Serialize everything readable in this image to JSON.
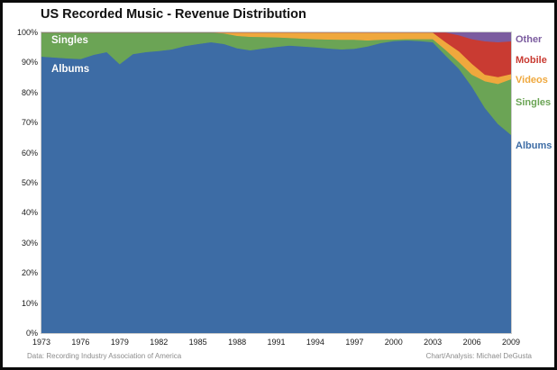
{
  "chart_data": {
    "type": "area",
    "stacked": true,
    "stack_total": 100,
    "title": "US Recorded Music - Revenue Distribution",
    "xlabel": "",
    "ylabel": "",
    "ylim": [
      0,
      100
    ],
    "grid": false,
    "legend_position": "right-outside",
    "x": [
      1973,
      1974,
      1975,
      1976,
      1977,
      1978,
      1979,
      1980,
      1981,
      1982,
      1983,
      1984,
      1985,
      1986,
      1987,
      1988,
      1989,
      1990,
      1991,
      1992,
      1993,
      1994,
      1995,
      1996,
      1997,
      1998,
      1999,
      2000,
      2001,
      2002,
      2003,
      2004,
      2005,
      2006,
      2007,
      2008,
      2009
    ],
    "x_tick_labels": [
      "1973",
      "1976",
      "1979",
      "1982",
      "1985",
      "1988",
      "1991",
      "1994",
      "1997",
      "2000",
      "2003",
      "2006",
      "2009"
    ],
    "y_tick_labels": [
      "0%",
      "10%",
      "20%",
      "30%",
      "40%",
      "50%",
      "60%",
      "70%",
      "80%",
      "90%",
      "100%"
    ],
    "series": [
      {
        "name": "Albums",
        "color": "#3D6CA5",
        "values": [
          92.0,
          91.7,
          91.4,
          91.2,
          92.6,
          93.5,
          89.5,
          92.8,
          93.5,
          93.9,
          94.4,
          95.5,
          96.2,
          96.8,
          96.2,
          94.8,
          94.1,
          94.7,
          95.2,
          95.7,
          95.4,
          95.1,
          94.7,
          94.4,
          94.6,
          95.4,
          96.5,
          97.2,
          97.4,
          97.2,
          96.8,
          92.3,
          88.0,
          82.0,
          74.9,
          69.6,
          66.0
        ]
      },
      {
        "name": "Singles",
        "color": "#6BA455",
        "values": [
          8.0,
          8.3,
          8.6,
          8.8,
          7.4,
          6.5,
          10.5,
          7.2,
          6.5,
          6.1,
          5.6,
          4.5,
          3.8,
          3.2,
          3.5,
          4.1,
          4.5,
          3.8,
          3.2,
          2.5,
          2.6,
          2.7,
          3.0,
          3.2,
          3.0,
          2.0,
          1.1,
          0.5,
          0.4,
          0.6,
          1.0,
          1.9,
          2.2,
          4.0,
          8.9,
          13.3,
          18.5
        ]
      },
      {
        "name": "Videos",
        "color": "#EFA83D",
        "values": [
          0,
          0,
          0,
          0,
          0,
          0,
          0,
          0,
          0,
          0,
          0,
          0,
          0,
          0,
          0.3,
          1.1,
          1.4,
          1.5,
          1.6,
          1.8,
          2.0,
          2.2,
          2.3,
          2.4,
          2.4,
          2.6,
          2.4,
          2.3,
          2.2,
          2.2,
          2.2,
          2.6,
          3.6,
          3.6,
          2.2,
          2.3,
          1.7
        ]
      },
      {
        "name": "Mobile",
        "color": "#C93B32",
        "values": [
          0,
          0,
          0,
          0,
          0,
          0,
          0,
          0,
          0,
          0,
          0,
          0,
          0,
          0,
          0,
          0,
          0,
          0,
          0,
          0,
          0,
          0,
          0,
          0,
          0,
          0,
          0,
          0,
          0,
          0,
          0,
          3.2,
          5.3,
          8.2,
          11.1,
          11.6,
          10.9
        ]
      },
      {
        "name": "Other",
        "color": "#7B5C9F",
        "values": [
          0,
          0,
          0,
          0,
          0,
          0,
          0,
          0,
          0,
          0,
          0,
          0,
          0,
          0,
          0,
          0,
          0,
          0,
          0,
          0,
          0,
          0,
          0,
          0,
          0,
          0,
          0,
          0,
          0,
          0,
          0,
          0,
          0.9,
          2.2,
          2.9,
          3.2,
          2.9
        ]
      }
    ]
  },
  "legend": {
    "items": [
      {
        "label": "Other",
        "color": "#7B5C9F"
      },
      {
        "label": "Mobile",
        "color": "#C93B32"
      },
      {
        "label": "Videos",
        "color": "#EFA83D"
      },
      {
        "label": "Singles",
        "color": "#6BA455"
      },
      {
        "label": "Albums",
        "color": "#3D6CA5"
      }
    ]
  },
  "area_labels": {
    "singles": "Singles",
    "albums": "Albums"
  },
  "footer": {
    "left": "Data: Recording Industry Association of America",
    "right": "Chart/Analysis: Michael DeGusta"
  }
}
